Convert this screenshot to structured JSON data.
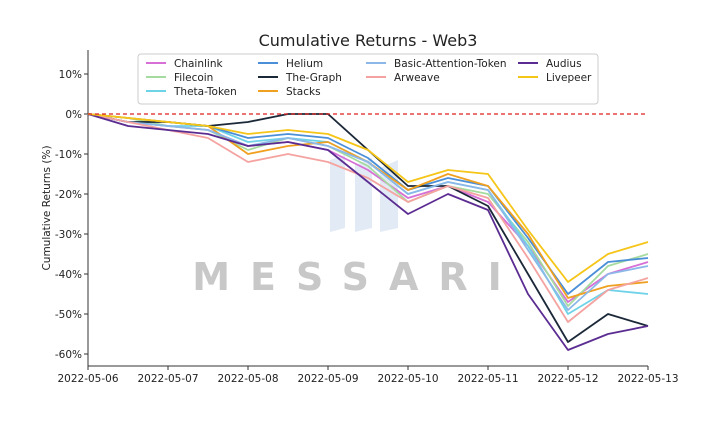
{
  "chart_data": {
    "type": "line",
    "title": "Cumulative Returns - Web3",
    "xlabel": "",
    "ylabel": "Cumulative Returns (%)",
    "x_ticks": [
      "2022-05-06",
      "2022-05-07",
      "2022-05-08",
      "2022-05-09",
      "2022-05-10",
      "2022-05-11",
      "2022-05-12",
      "2022-05-13"
    ],
    "y_ticks": [
      10,
      0,
      -10,
      -20,
      -30,
      -40,
      -50,
      -60
    ],
    "y_tick_labels": [
      "10%",
      "0%",
      "-10%",
      "-20%",
      "-30%",
      "-40%",
      "-50%",
      "-60%"
    ],
    "xlim": [
      "2022-05-06",
      "2022-05-13"
    ],
    "ylim": [
      -63,
      16
    ],
    "zero_line": {
      "value": 0,
      "color": "#dd2222",
      "style": "dashed"
    },
    "grid": false,
    "legend_position": "top-center",
    "watermark": "MESSARI",
    "x": [
      "2022-05-06",
      "2022-05-06 12:00",
      "2022-05-07",
      "2022-05-07 12:00",
      "2022-05-08",
      "2022-05-08 12:00",
      "2022-05-09",
      "2022-05-09 12:00",
      "2022-05-10",
      "2022-05-10 12:00",
      "2022-05-11",
      "2022-05-11 12:00",
      "2022-05-12",
      "2022-05-12 12:00",
      "2022-05-13"
    ],
    "series": [
      {
        "name": "Chainlink",
        "color": "#d66fd6",
        "values": [
          0,
          -2,
          -3,
          -4,
          -8,
          -7,
          -9,
          -14,
          -21,
          -18,
          -22,
          -33,
          -47,
          -40,
          -37
        ]
      },
      {
        "name": "Filecoin",
        "color": "#a6dba0",
        "values": [
          0,
          -1,
          -3,
          -4,
          -9,
          -6,
          -8,
          -13,
          -22,
          -18,
          -20,
          -32,
          -48,
          -38,
          -35
        ]
      },
      {
        "name": "Theta-Token",
        "color": "#6fd3e8",
        "values": [
          0,
          -2,
          -3,
          -3,
          -7,
          -6,
          -7,
          -12,
          -20,
          -17,
          -19,
          -33,
          -50,
          -44,
          -45
        ]
      },
      {
        "name": "Helium",
        "color": "#4a8fd8",
        "values": [
          0,
          -1,
          -2,
          -3,
          -6,
          -5,
          -6,
          -11,
          -19,
          -16,
          -18,
          -31,
          -45,
          -37,
          -36
        ]
      },
      {
        "name": "The-Graph",
        "color": "#1b2838",
        "values": [
          0,
          -2,
          -2,
          -3,
          -2,
          0,
          0,
          -9,
          -18,
          -18,
          -23,
          -40,
          -57,
          -50,
          -53
        ]
      },
      {
        "name": "Stacks",
        "color": "#f0a020",
        "values": [
          0,
          -1,
          -2,
          -3,
          -10,
          -8,
          -7,
          -12,
          -19,
          -15,
          -18,
          -30,
          -46,
          -43,
          -42
        ]
      },
      {
        "name": "Basic-Attention-Token",
        "color": "#8bb8e8",
        "values": [
          0,
          -2,
          -3,
          -4,
          -8,
          -6,
          -8,
          -12,
          -20,
          -17,
          -19,
          -34,
          -49,
          -40,
          -38
        ]
      },
      {
        "name": "Arweave",
        "color": "#f4a3a0",
        "values": [
          0,
          -2,
          -4,
          -6,
          -12,
          -10,
          -12,
          -16,
          -22,
          -18,
          -21,
          -36,
          -52,
          -44,
          -41
        ]
      },
      {
        "name": "Audius",
        "color": "#5b2c91",
        "values": [
          0,
          -3,
          -4,
          -5,
          -8,
          -7,
          -9,
          -17,
          -25,
          -20,
          -24,
          -45,
          -59,
          -55,
          -53
        ]
      },
      {
        "name": "Livepeer",
        "color": "#f5c518",
        "values": [
          0,
          -1,
          -2,
          -3,
          -5,
          -4,
          -5,
          -9,
          -17,
          -14,
          -15,
          -29,
          -42,
          -35,
          -32
        ]
      }
    ]
  }
}
